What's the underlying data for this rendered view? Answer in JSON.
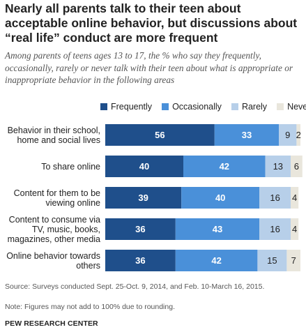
{
  "title": "Nearly all parents talk to their teen about acceptable online behavior, but discussions about “real life” conduct are more frequent",
  "subtitle": "Among parents of teens ages 13 to 17, the % who say they frequently, occasionally, rarely or never talk with their teen about what is appropriate or inappropriate behavior in the following areas",
  "footer": {
    "source": "Source: Surveys conducted Sept. 25-Oct. 9, 2014, and Feb. 10-March 16, 2015.",
    "note": "Note: Figures may not add to 100% due to rounding.",
    "brand": "PEW RESEARCH CENTER"
  },
  "chart_data": {
    "type": "bar",
    "orientation": "horizontal",
    "stacked": true,
    "legend_position": "top",
    "categories": [
      [
        "Behavior in their school,",
        "home and social lives"
      ],
      [
        "To share online"
      ],
      [
        "Content for them to be",
        "viewing online"
      ],
      [
        "Content to consume via",
        "TV, music, books,",
        "magazines, other media"
      ],
      [
        "Online behavior towards",
        "others"
      ]
    ],
    "series": [
      {
        "name": "Frequently",
        "color": "#1f4f8b",
        "label_color": "#ffffff",
        "values": [
          56,
          40,
          39,
          36,
          36
        ]
      },
      {
        "name": "Occasionally",
        "color": "#4a90d9",
        "label_color": "#ffffff",
        "values": [
          33,
          42,
          40,
          43,
          42
        ]
      },
      {
        "name": "Rarely",
        "color": "#b7cfe9",
        "label_color": "#222222",
        "values": [
          9,
          13,
          16,
          16,
          15
        ]
      },
      {
        "name": "Never",
        "color": "#e9e6dc",
        "label_color": "#222222",
        "values": [
          2,
          6,
          4,
          4,
          7
        ]
      }
    ]
  }
}
